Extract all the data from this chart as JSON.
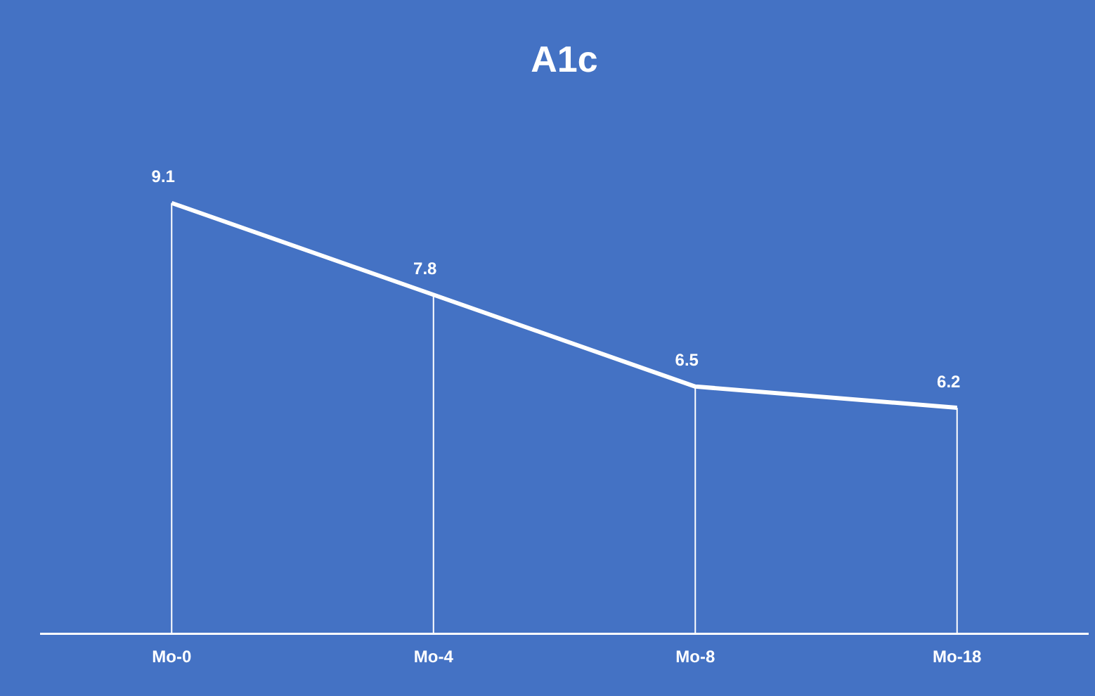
{
  "chart_data": {
    "type": "line",
    "title": "A1c",
    "categories": [
      "Mo-0",
      "Mo-4",
      "Mo-8",
      "Mo-18"
    ],
    "series": [
      {
        "color": "#ffffff",
        "values": [
          9.1,
          7.8,
          6.5,
          6.2
        ]
      }
    ],
    "data_labels": true,
    "grid": "x",
    "legend": false,
    "marker": "none",
    "tick_labels": "x"
  }
}
